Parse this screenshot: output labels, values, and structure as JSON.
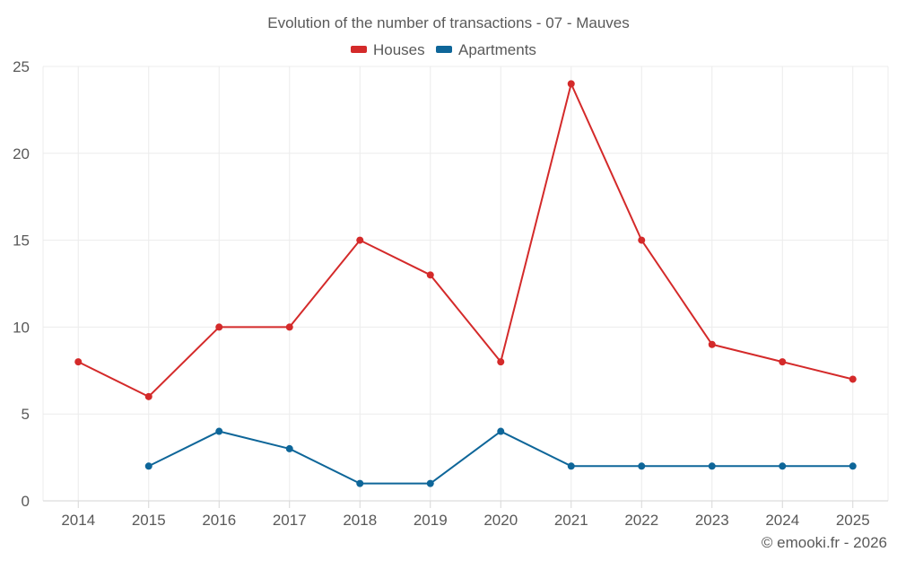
{
  "chart_data": {
    "type": "line",
    "title": "Evolution of the number of transactions - 07 - Mauves",
    "categories": [
      "2014",
      "2015",
      "2016",
      "2017",
      "2018",
      "2019",
      "2020",
      "2021",
      "2022",
      "2023",
      "2024",
      "2025"
    ],
    "series": [
      {
        "name": "Houses",
        "color": "#d42a2a",
        "values": [
          8,
          6,
          10,
          10,
          15,
          13,
          8,
          24,
          15,
          9,
          8,
          7
        ]
      },
      {
        "name": "Apartments",
        "color": "#0e6699",
        "values": [
          null,
          2,
          4,
          3,
          1,
          1,
          4,
          2,
          2,
          2,
          2,
          2
        ]
      }
    ],
    "ylim": [
      0,
      25
    ],
    "yticks": [
      "0",
      "5",
      "10",
      "15",
      "20",
      "25"
    ],
    "xlabel": "",
    "ylabel": "",
    "legend_position": "top-center",
    "grid": true
  },
  "credit": "© emooki.fr - 2026"
}
